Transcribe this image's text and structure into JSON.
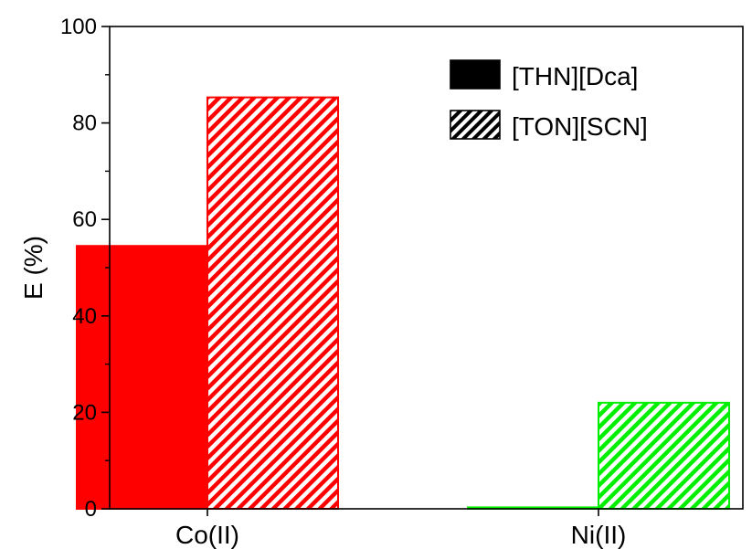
{
  "chart_data": {
    "type": "bar",
    "categories": [
      "Co(II)",
      "Ni(II)"
    ],
    "series": [
      {
        "name": "[THN][Dca]",
        "values": [
          54.5,
          0.3
        ],
        "pattern": "solid"
      },
      {
        "name": "[TON][SCN]",
        "values": [
          85.3,
          22.0
        ],
        "pattern": "hatched"
      }
    ],
    "category_colors": [
      "#ff0000",
      "#00ee00"
    ],
    "legend_color": "#000000",
    "xlabel": "",
    "ylabel": "E (%)",
    "ylim": [
      0,
      100
    ],
    "yticks": [
      0,
      20,
      40,
      60,
      80,
      100
    ],
    "grid": false,
    "legend_position": "top-right"
  }
}
